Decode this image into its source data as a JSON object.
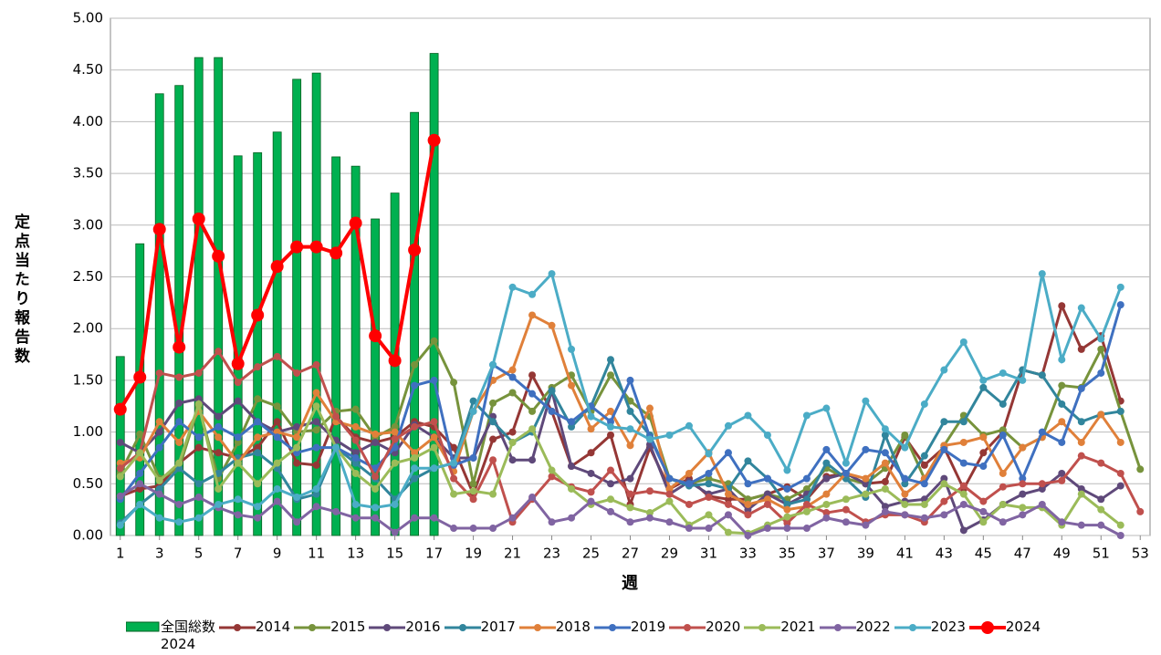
{
  "chart_data": {
    "type": "combo",
    "y_label": "定点当たり報告数",
    "x_label": "週",
    "xlim": [
      0.5,
      53.5
    ],
    "xticks": [
      1,
      3,
      5,
      7,
      9,
      11,
      13,
      15,
      17,
      19,
      21,
      23,
      25,
      27,
      29,
      31,
      33,
      35,
      37,
      39,
      41,
      43,
      45,
      47,
      49,
      51,
      53
    ],
    "ylim": [
      0,
      5
    ],
    "yticks": [
      {
        "value": 0,
        "label": "0.00"
      },
      {
        "value": 0.5,
        "label": "0.50"
      },
      {
        "value": 1,
        "label": "1.00"
      },
      {
        "value": 1.5,
        "label": "1.50"
      },
      {
        "value": 2,
        "label": "2.00"
      },
      {
        "value": 2.5,
        "label": "2.50"
      },
      {
        "value": 3,
        "label": "3.00"
      },
      {
        "value": 3.5,
        "label": "3.50"
      },
      {
        "value": 4,
        "label": "4.00"
      },
      {
        "value": 4.5,
        "label": "4.50"
      },
      {
        "value": 5,
        "label": "5.00"
      }
    ],
    "grid": true,
    "x": [
      1,
      2,
      3,
      4,
      5,
      6,
      7,
      8,
      9,
      10,
      11,
      12,
      13,
      14,
      15,
      16,
      17,
      18,
      19,
      20,
      21,
      22,
      23,
      24,
      25,
      26,
      27,
      28,
      29,
      30,
      31,
      32,
      33,
      34,
      35,
      36,
      37,
      38,
      39,
      40,
      41,
      42,
      43,
      44,
      45,
      46,
      47,
      48,
      49,
      50,
      51,
      52,
      53
    ],
    "series": [
      {
        "name": "全国総数\n2024",
        "type": "bar",
        "color": "#00b050",
        "values": [
          1.73,
          2.82,
          4.27,
          4.35,
          4.62,
          4.62,
          3.67,
          3.7,
          3.9,
          4.41,
          4.47,
          3.66,
          3.57,
          3.06,
          3.31,
          4.09,
          4.66,
          null,
          null,
          null,
          null,
          null,
          null,
          null,
          null,
          null,
          null,
          null,
          null,
          null,
          null,
          null,
          null,
          null,
          null,
          null,
          null,
          null,
          null,
          null,
          null,
          null,
          null,
          null,
          null,
          null,
          null,
          null,
          null,
          null,
          null,
          null,
          null
        ]
      },
      {
        "name": "2014",
        "type": "line",
        "color": "#953735",
        "values": [
          0.38,
          0.45,
          0.48,
          0.7,
          0.85,
          0.8,
          0.75,
          0.85,
          1.1,
          0.7,
          0.68,
          1.15,
          0.95,
          0.9,
          0.95,
          1.1,
          1.05,
          0.85,
          0.4,
          0.93,
          1.0,
          1.55,
          1.2,
          0.67,
          0.8,
          0.97,
          0.3,
          0.85,
          0.45,
          0.55,
          0.38,
          0.35,
          0.35,
          0.4,
          0.47,
          0.35,
          0.57,
          0.6,
          0.5,
          0.52,
          0.95,
          0.68,
          0.85,
          0.45,
          0.8,
          1.0,
          1.6,
          1.55,
          2.22,
          1.8,
          1.93,
          1.3,
          null
        ]
      },
      {
        "name": "2015",
        "type": "line",
        "color": "#77933c",
        "values": [
          0.6,
          0.98,
          0.55,
          0.65,
          1.25,
          0.55,
          0.9,
          1.32,
          1.25,
          1.0,
          1.02,
          1.2,
          1.22,
          0.95,
          1.05,
          1.65,
          1.88,
          1.48,
          0.5,
          1.28,
          1.38,
          1.2,
          1.43,
          1.55,
          1.2,
          1.55,
          1.3,
          1.15,
          0.55,
          0.5,
          0.55,
          0.5,
          0.35,
          0.4,
          0.35,
          0.45,
          0.65,
          0.55,
          0.5,
          0.65,
          0.97,
          0.55,
          0.87,
          1.16,
          0.97,
          1.02,
          0.85,
          0.95,
          1.45,
          1.43,
          1.8,
          1.2,
          0.64
        ]
      },
      {
        "name": "2016",
        "type": "line",
        "color": "#5f497a",
        "values": [
          0.9,
          0.8,
          1.0,
          1.28,
          1.32,
          1.15,
          1.3,
          1.1,
          1.0,
          1.05,
          1.1,
          0.92,
          0.8,
          0.9,
          0.8,
          1.07,
          0.95,
          0.75,
          0.75,
          1.15,
          0.73,
          0.73,
          1.4,
          0.67,
          0.6,
          0.5,
          0.55,
          0.88,
          0.4,
          0.52,
          0.4,
          0.45,
          0.25,
          0.4,
          0.3,
          0.4,
          0.55,
          0.6,
          0.5,
          0.28,
          0.33,
          0.35,
          0.55,
          0.05,
          0.15,
          0.3,
          0.4,
          0.45,
          0.6,
          0.45,
          0.35,
          0.48,
          null
        ]
      },
      {
        "name": "2017",
        "type": "line",
        "color": "#31859c",
        "values": [
          0.12,
          0.3,
          0.45,
          0.65,
          0.5,
          0.6,
          0.75,
          0.8,
          0.65,
          0.35,
          0.4,
          0.85,
          0.7,
          0.55,
          0.35,
          0.55,
          0.65,
          0.7,
          1.3,
          1.1,
          0.9,
          1.0,
          1.4,
          1.05,
          1.25,
          1.7,
          1.2,
          0.97,
          0.55,
          0.48,
          0.5,
          0.45,
          0.72,
          0.55,
          0.3,
          0.35,
          0.7,
          0.55,
          0.37,
          0.97,
          0.5,
          0.77,
          1.1,
          1.1,
          1.43,
          1.27,
          1.6,
          1.55,
          1.27,
          1.1,
          1.17,
          1.2,
          null
        ]
      },
      {
        "name": "2018",
        "type": "line",
        "color": "#e0803a",
        "values": [
          0.7,
          0.75,
          1.1,
          0.9,
          1.2,
          0.95,
          0.7,
          0.95,
          1.0,
          0.95,
          1.38,
          1.1,
          1.05,
          0.98,
          1.0,
          0.8,
          0.95,
          0.62,
          1.2,
          1.5,
          1.6,
          2.13,
          2.03,
          1.45,
          1.03,
          1.2,
          0.87,
          1.23,
          0.45,
          0.6,
          0.8,
          0.4,
          0.3,
          0.35,
          0.25,
          0.28,
          0.4,
          0.6,
          0.55,
          0.7,
          0.4,
          0.55,
          0.87,
          0.9,
          0.95,
          0.6,
          0.85,
          0.95,
          1.1,
          0.9,
          1.17,
          0.9,
          null
        ]
      },
      {
        "name": "2019",
        "type": "line",
        "color": "#3f70c0",
        "values": [
          0.35,
          0.6,
          0.85,
          1.1,
          0.95,
          1.05,
          0.95,
          1.1,
          0.95,
          0.8,
          0.85,
          0.85,
          0.75,
          0.65,
          0.85,
          1.45,
          1.5,
          0.68,
          0.75,
          1.65,
          1.53,
          1.37,
          1.2,
          1.1,
          1.25,
          1.1,
          1.5,
          0.95,
          0.55,
          0.5,
          0.6,
          0.8,
          0.5,
          0.55,
          0.45,
          0.55,
          0.83,
          0.6,
          0.83,
          0.8,
          0.55,
          0.5,
          0.83,
          0.7,
          0.67,
          0.97,
          0.55,
          1.0,
          0.9,
          1.42,
          1.57,
          2.23,
          null
        ]
      },
      {
        "name": "2020",
        "type": "line",
        "color": "#c0504d",
        "values": [
          0.65,
          0.8,
          1.57,
          1.53,
          1.57,
          1.78,
          1.48,
          1.63,
          1.73,
          1.57,
          1.65,
          1.15,
          0.92,
          0.57,
          0.93,
          1.05,
          1.1,
          0.55,
          0.35,
          0.73,
          0.13,
          0.35,
          0.57,
          0.47,
          0.42,
          0.63,
          0.4,
          0.43,
          0.4,
          0.3,
          0.37,
          0.3,
          0.2,
          0.3,
          0.12,
          0.3,
          0.22,
          0.25,
          0.13,
          0.2,
          0.2,
          0.13,
          0.33,
          0.48,
          0.33,
          0.47,
          0.5,
          0.5,
          0.53,
          0.77,
          0.7,
          0.6,
          0.23
        ]
      },
      {
        "name": "2021",
        "type": "line",
        "color": "#9bbb59",
        "values": [
          0.57,
          0.8,
          0.53,
          0.7,
          1.27,
          0.45,
          0.7,
          0.5,
          0.7,
          0.85,
          1.25,
          0.85,
          0.6,
          0.45,
          0.7,
          0.75,
          0.85,
          0.4,
          0.43,
          0.4,
          0.9,
          1.03,
          0.63,
          0.45,
          0.3,
          0.35,
          0.27,
          0.22,
          0.33,
          0.1,
          0.2,
          0.03,
          0.02,
          0.1,
          0.18,
          0.23,
          0.3,
          0.35,
          0.4,
          0.45,
          0.3,
          0.3,
          0.5,
          0.4,
          0.13,
          0.3,
          0.27,
          0.27,
          0.1,
          0.4,
          0.25,
          0.1,
          null
        ]
      },
      {
        "name": "2022",
        "type": "line",
        "color": "#8064a2",
        "values": [
          0.38,
          0.5,
          0.4,
          0.3,
          0.37,
          0.27,
          0.2,
          0.17,
          0.33,
          0.13,
          0.28,
          0.23,
          0.17,
          0.17,
          0.03,
          0.17,
          0.17,
          0.07,
          0.07,
          0.07,
          0.17,
          0.37,
          0.13,
          0.17,
          0.33,
          0.23,
          0.13,
          0.17,
          0.13,
          0.07,
          0.07,
          0.2,
          0.0,
          0.07,
          0.07,
          0.07,
          0.17,
          0.13,
          0.1,
          0.23,
          0.2,
          0.17,
          0.2,
          0.3,
          0.23,
          0.13,
          0.2,
          0.3,
          0.13,
          0.1,
          0.1,
          0.0,
          null
        ]
      },
      {
        "name": "2023",
        "type": "line",
        "color": "#4bacc6",
        "values": [
          0.1,
          0.3,
          0.17,
          0.13,
          0.17,
          0.3,
          0.35,
          0.28,
          0.45,
          0.37,
          0.45,
          0.85,
          0.3,
          0.27,
          0.3,
          0.65,
          0.65,
          0.7,
          1.2,
          1.65,
          2.4,
          2.33,
          2.53,
          1.8,
          1.15,
          1.05,
          1.03,
          0.93,
          0.97,
          1.06,
          0.79,
          1.06,
          1.16,
          0.97,
          0.63,
          1.16,
          1.23,
          0.7,
          1.3,
          1.03,
          0.85,
          1.27,
          1.6,
          1.87,
          1.5,
          1.57,
          1.5,
          2.53,
          1.7,
          2.2,
          1.9,
          2.4,
          null
        ]
      },
      {
        "name": "2024",
        "type": "line",
        "color": "#ff0000",
        "bold": true,
        "values": [
          1.22,
          1.53,
          2.96,
          1.82,
          3.06,
          2.7,
          1.66,
          2.13,
          2.6,
          2.79,
          2.79,
          2.73,
          3.02,
          1.93,
          1.69,
          2.76,
          3.82,
          null,
          null,
          null,
          null,
          null,
          null,
          null,
          null,
          null,
          null,
          null,
          null,
          null,
          null,
          null,
          null,
          null,
          null,
          null,
          null,
          null,
          null,
          null,
          null,
          null,
          null,
          null,
          null,
          null,
          null,
          null,
          null,
          null,
          null,
          null,
          null
        ]
      }
    ]
  }
}
